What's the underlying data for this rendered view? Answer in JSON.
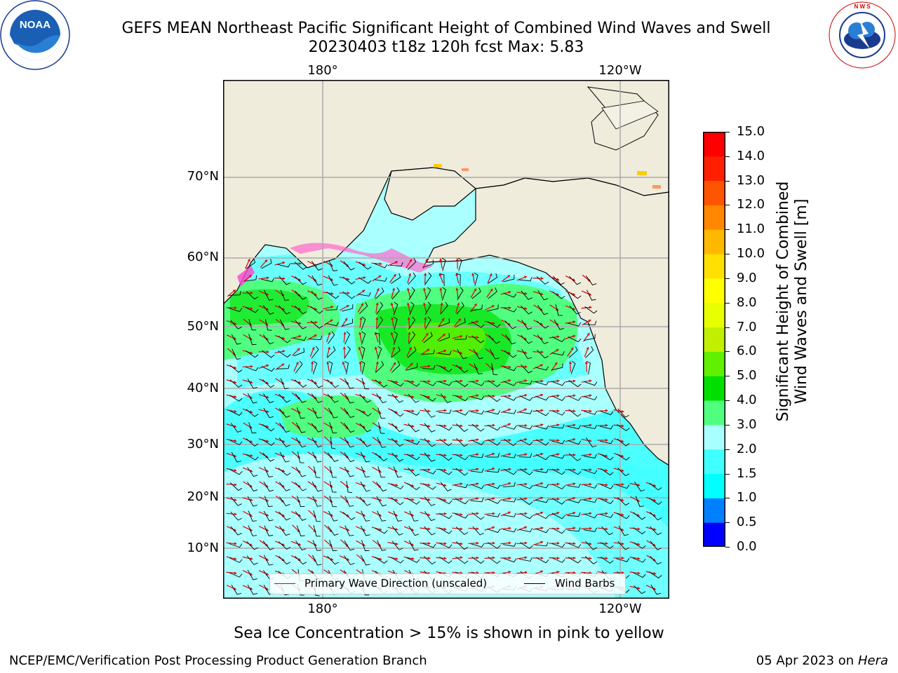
{
  "header": {
    "title_line1": "GEFS MEAN Northeast Pacific Significant Height of Combined Wind Waves and Swell",
    "title_line2": "20230403 t18z 120h fcst   Max: 5.83"
  },
  "logos": {
    "left_icon": "noaa-logo-icon",
    "left_text": "NOAA",
    "right_icon": "nws-logo-icon",
    "right_text": "NATIONAL WEATHER SERVICE"
  },
  "map": {
    "lon_labels_top": [
      "180°",
      "120°W"
    ],
    "lon_labels_bottom": [
      "180°",
      "120°W"
    ],
    "lat_labels": [
      "70°N",
      "60°N",
      "50°N",
      "40°N",
      "30°N",
      "20°N",
      "10°N"
    ],
    "land_color": "#efecdc",
    "sea_low_color": "#aaffff",
    "wave_color": "#e00000",
    "barb_color": "#000000"
  },
  "legend": {
    "primary_wave": "Primary Wave Direction (unscaled)",
    "wind_barbs": "Wind Barbs"
  },
  "colorbar": {
    "label_line1": "Significant Height of Combined",
    "label_line2": "Wind Waves and Swell [m]",
    "ticks": [
      "0.0",
      "0.5",
      "1.0",
      "1.5",
      "2.0",
      "3.0",
      "4.0",
      "5.0",
      "6.0",
      "7.0",
      "8.0",
      "9.0",
      "10.0",
      "11.0",
      "12.0",
      "13.0",
      "14.0",
      "15.0"
    ],
    "colors": [
      "#0000ff",
      "#0080ff",
      "#00ffff",
      "#40ffff",
      "#aaffff",
      "#50ff80",
      "#00e000",
      "#60f000",
      "#c0f000",
      "#e8ff00",
      "#ffff00",
      "#ffe000",
      "#ffb800",
      "#ff8800",
      "#ff5500",
      "#ff2000",
      "#ff0000"
    ]
  },
  "caption": "Sea Ice Concentration > 15% is shown in pink to yellow",
  "footer": {
    "left": "NCEP/EMC/Verification Post Processing Product Generation Branch",
    "right_date": "05 Apr 2023 on ",
    "right_host": "Hera"
  }
}
